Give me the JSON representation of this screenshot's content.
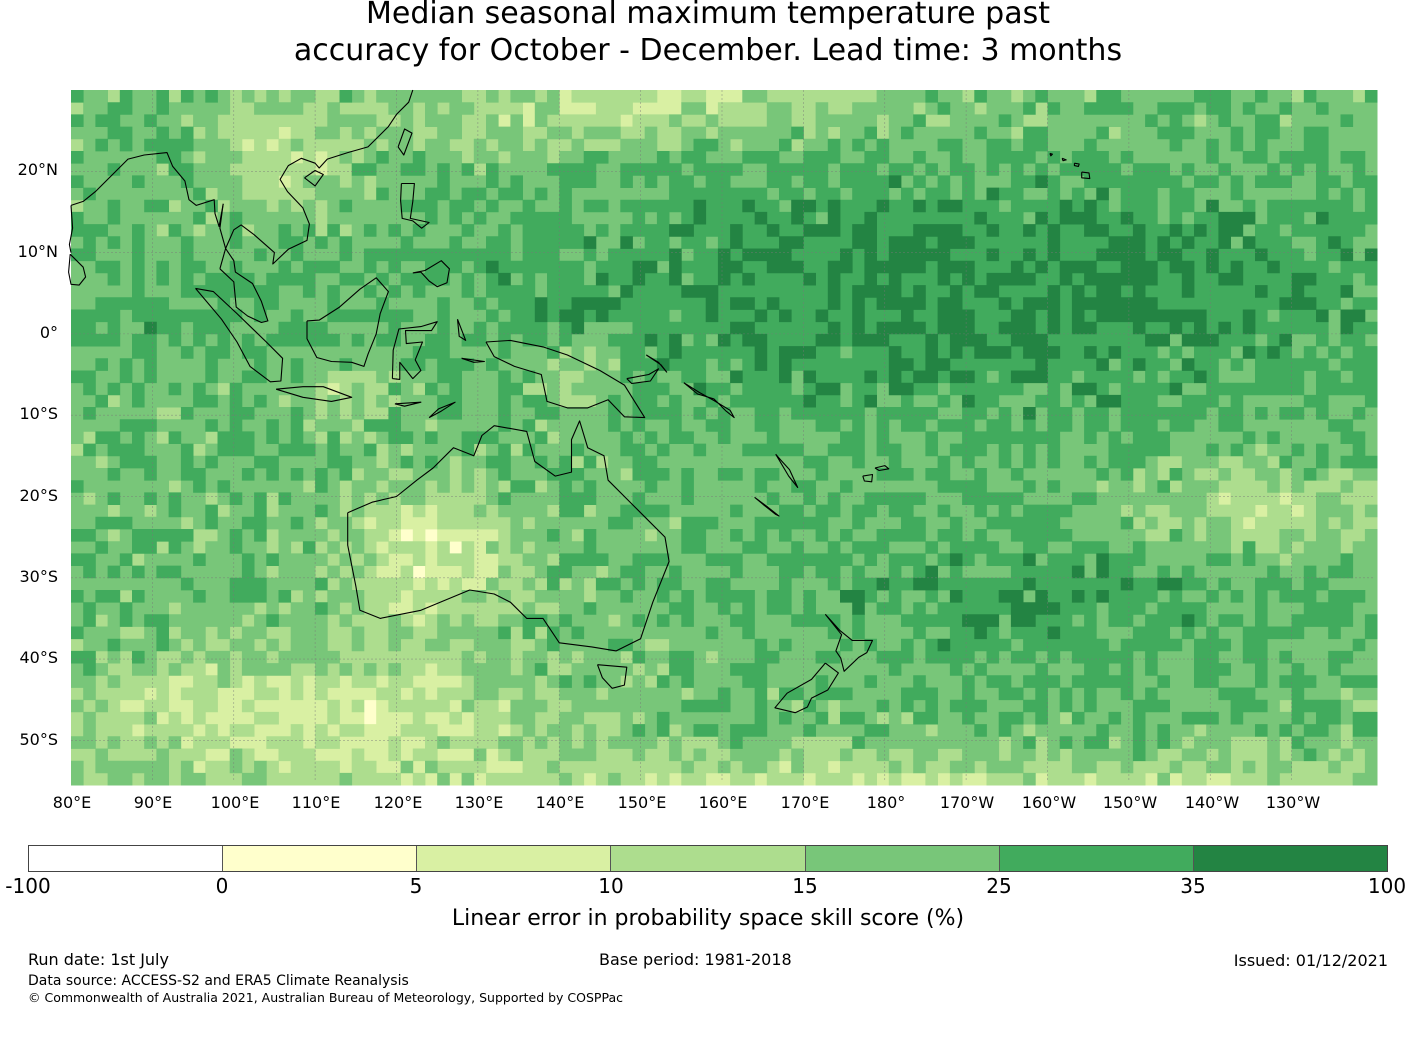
{
  "title": {
    "line1": "Median seasonal maximum temperature past",
    "line2": "accuracy for October - December. Lead time: 3 months"
  },
  "map": {
    "lat_labels": [
      "20°N",
      "10°N",
      "0°",
      "10°S",
      "20°S",
      "30°S",
      "40°S",
      "50°S"
    ],
    "lon_labels": [
      "80°E",
      "90°E",
      "100°E",
      "110°E",
      "120°E",
      "130°E",
      "140°E",
      "150°E",
      "160°E",
      "170°E",
      "180°",
      "170°W",
      "160°W",
      "150°W",
      "140°W",
      "130°W"
    ],
    "lat_range": [
      -55,
      30
    ],
    "lon_range": [
      80,
      240
    ],
    "gridlines": true
  },
  "colorbar": {
    "label": "Linear error in probability space skill score (%)",
    "ticks": [
      "-100",
      "0",
      "5",
      "10",
      "15",
      "25",
      "35",
      "100"
    ],
    "colors": [
      "#ffffff",
      "#ffffcc",
      "#d9f0a3",
      "#addd8e",
      "#78c679",
      "#41ab5d",
      "#238443"
    ]
  },
  "footer": {
    "run_date": "Run date: 1st July",
    "base_period": "Base period: 1981-2018",
    "issued": "Issued: 01/12/2021",
    "data_source": "Data source: ACCESS-S2 and ERA5 Climate Reanalysis",
    "copyright": "© Commonwealth of Australia 2021, Australian Bureau of Meteorology, Supported by COSPPac"
  }
}
